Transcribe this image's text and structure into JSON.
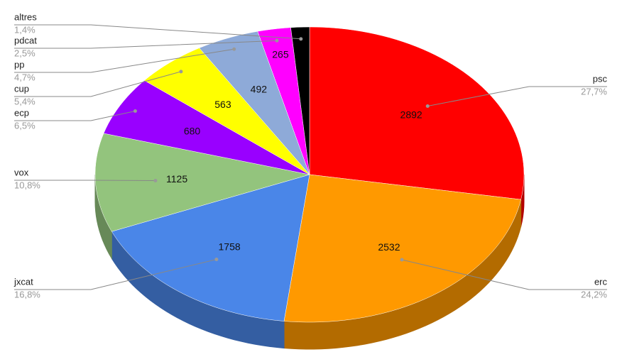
{
  "chart_data": {
    "type": "pie",
    "categories": [
      "psc",
      "erc",
      "jxcat",
      "vox",
      "ecp",
      "cup",
      "pp",
      "pdcat",
      "altres"
    ],
    "values": [
      27.7,
      24.2,
      16.8,
      10.8,
      6.5,
      5.4,
      4.7,
      2.5,
      1.4
    ],
    "value_labels": [
      "27,7%",
      "24,2%",
      "16,8%",
      "10,8%",
      "6,5%",
      "5,4%",
      "4,7%",
      "2,5%",
      "1,4%"
    ],
    "counts": [
      2892,
      2532,
      1758,
      1125,
      680,
      563,
      492,
      265,
      null
    ],
    "colors": [
      "#ff0000",
      "#ff9900",
      "#4a86e8",
      "#93c47d",
      "#9900ff",
      "#ffff00",
      "#8eaad8",
      "#ff00ff",
      "#000000"
    ]
  }
}
